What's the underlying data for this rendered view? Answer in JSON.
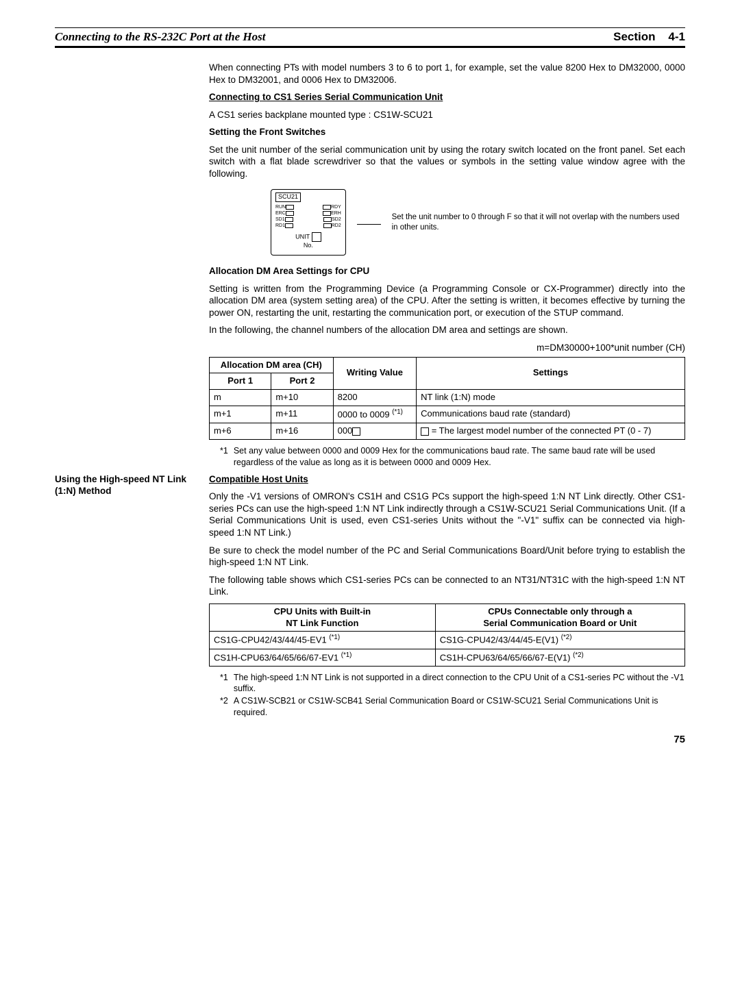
{
  "header": {
    "left": "Connecting to the RS-232C Port at the Host",
    "right_label": "Section",
    "right_num": "4-1"
  },
  "intro_para": "When connecting PTs with model numbers 3 to 6 to port 1, for example, set the value 8200 Hex to DM32000, 0000 Hex to DM32001, and 0006 Hex to DM32006.",
  "h_connect_unit": "Connecting to CS1 Series Serial Communication Unit",
  "backplane": "A CS1 series backplane mounted type : CS1W-SCU21",
  "h_front_switches": "Setting the Front Switches",
  "front_switches_body": "Set the unit number of the serial communication unit by using the rotary switch located on the front panel. Set each switch with a flat blade screwdriver so that the values or symbols in the setting value window agree with the following.",
  "diagram": {
    "title": "SCU21",
    "leds_left": [
      "RUN",
      "ERC",
      "SD1",
      "RD1"
    ],
    "leds_right": [
      "RDY",
      "ERH",
      "SD2",
      "RD2"
    ],
    "unit_label_top": "UNIT",
    "unit_label_bottom": "No.",
    "note": "Set the unit number to 0 through F so that it will not overlap with the numbers used in other units."
  },
  "h_alloc_dm": "Allocation DM Area Settings for CPU",
  "alloc_dm_p1": "Setting is written from the Programming Device (a Programming Console or CX-Programmer) directly into the allocation DM area (system setting area) of the CPU. After the setting is written, it becomes effective by turning the power ON, restarting the unit, restarting the communication port, or execution of the STUP command.",
  "alloc_dm_p2": "In the following, the channel numbers of the allocation DM area and settings are shown.",
  "formula": "m=DM30000+100*unit number (CH)",
  "table1": {
    "head_group": "Allocation DM area (CH)",
    "head_port1": "Port 1",
    "head_port2": "Port 2",
    "head_writing": "Writing Value",
    "head_settings": "Settings",
    "rows": [
      {
        "p1": "m",
        "p2": "m+10",
        "wv": "8200",
        "set": "NT link (1:N) mode"
      },
      {
        "p1": "m+1",
        "p2": "m+11",
        "wv": "0000 to 0009 ",
        "wv_sup": "(*1)",
        "set": "Communications baud rate (standard)"
      },
      {
        "p1": "m+6",
        "p2": "m+16",
        "wv": "000",
        "wv_sq": true,
        "set_pre_sq": true,
        "set": " = The largest model number of the connected PT (0 - 7)"
      }
    ],
    "footnote_num": "*1",
    "footnote_body": "Set any value between 0000 and 0009 Hex for the communications baud rate. The same baud rate will be used regardless of the value as long as it is between 0000 and 0009 Hex."
  },
  "side_label": "Using the High-speed NT Link (1:N) Method",
  "h_compat": "Compatible Host Units",
  "compat_p1": "Only the -V1 versions of OMRON's CS1H and CS1G PCs support the high-speed 1:N NT Link directly. Other CS1-series PCs can use the high-speed 1:N NT Link indirectly through a CS1W-SCU21 Serial Communications Unit. (If a Serial Communications Unit is used, even CS1-series Units without the \"-V1\" suffix can be connected via high-speed 1:N NT Link.)",
  "compat_p2": "Be sure to check the model number of the PC and Serial Communications Board/Unit before trying to establish the high-speed 1:N NT Link.",
  "compat_p3": "The following table shows which CS1-series PCs can be connected to an NT31/NT31C with the high-speed 1:N NT Link.",
  "table2": {
    "head_left_l1": "CPU Units with Built-in",
    "head_left_l2": "NT Link Function",
    "head_right_l1": "CPUs Connectable only through a",
    "head_right_l2": "Serial Communication Board or Unit",
    "rows": [
      {
        "l": "CS1G-CPU42/43/44/45-EV1 ",
        "l_sup": "(*1)",
        "r": "CS1G-CPU42/43/44/45-E(V1) ",
        "r_sup": "(*2)"
      },
      {
        "l": "CS1H-CPU63/64/65/66/67-EV1 ",
        "l_sup": "(*1)",
        "r": "CS1H-CPU63/64/65/66/67-E(V1) ",
        "r_sup": "(*2)"
      }
    ],
    "fn1_num": "*1",
    "fn1_body": "The high-speed 1:N NT Link is not supported in a direct connection to the CPU Unit of a CS1-series PC without the -V1 suffix.",
    "fn2_num": "*2",
    "fn2_body": "A CS1W-SCB21 or CS1W-SCB41 Serial Communication Board or CS1W-SCU21 Serial Communications Unit is required."
  },
  "page_number": "75"
}
